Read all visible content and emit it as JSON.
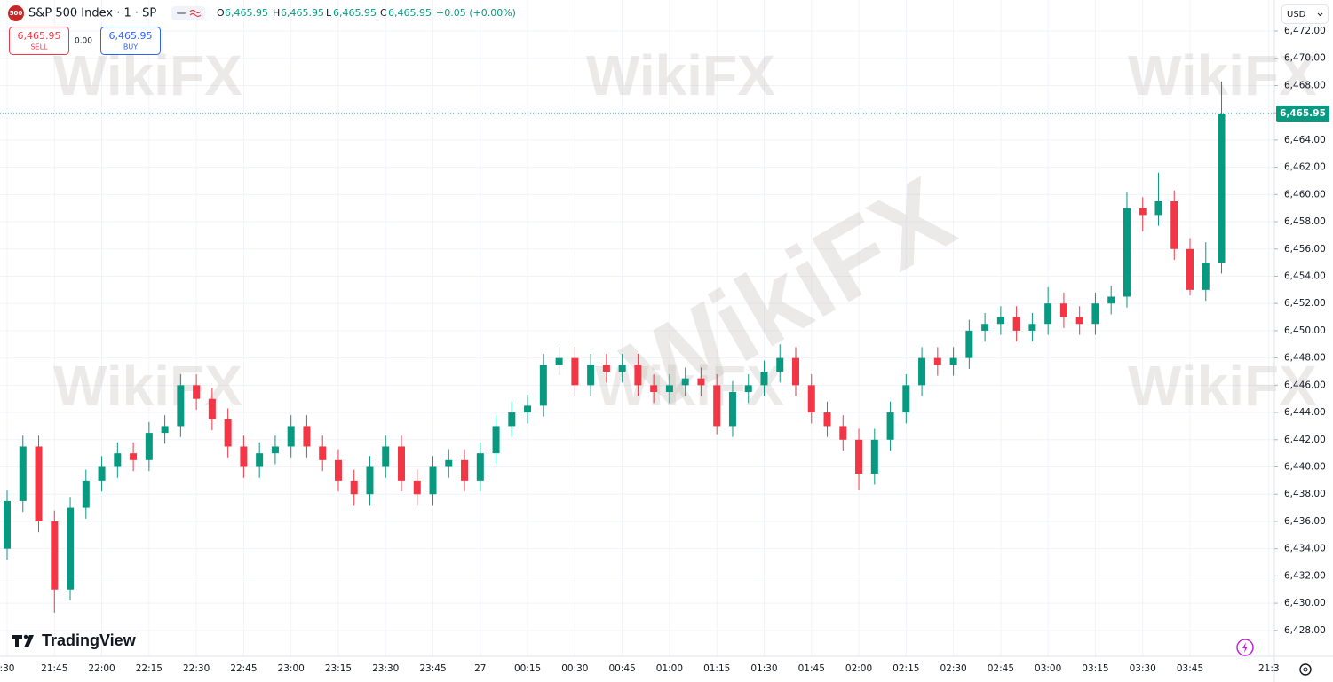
{
  "chart_data": {
    "type": "candlestick",
    "title": "S&P 500 Index · 1 · SP",
    "symbol_badge": "500",
    "header": {
      "open_label": "O",
      "open": "6,465.95",
      "high_label": "H",
      "high": "6,465.95",
      "low_label": "L",
      "low": "6,465.95",
      "close_label": "C",
      "close": "6,465.95",
      "change": "+0.05 (+0.00%)"
    },
    "sell": {
      "price": "6,465.95",
      "label": "SELL"
    },
    "spread": "0.00",
    "buy": {
      "price": "6,465.95",
      "label": "BUY"
    },
    "currency": "USD",
    "brand": "TradingView",
    "watermark": "WikiFX",
    "up_color": "#089981",
    "down_color": "#f23645",
    "grid": true,
    "last_price": {
      "value": 6465.95,
      "label": "6,465.95"
    },
    "categories": [
      ":30",
      null,
      null,
      "21:45",
      null,
      null,
      "22:00",
      null,
      null,
      "22:15",
      null,
      null,
      "22:30",
      null,
      null,
      "22:45",
      null,
      null,
      "23:00",
      null,
      null,
      "23:15",
      null,
      null,
      "23:30",
      null,
      null,
      "23:45",
      null,
      null,
      "27",
      null,
      null,
      "00:15",
      null,
      null,
      "00:30",
      null,
      null,
      "00:45",
      null,
      null,
      "01:00",
      null,
      null,
      "01:15",
      null,
      null,
      "01:30",
      null,
      null,
      "01:45",
      null,
      null,
      "02:00",
      null,
      null,
      "02:15",
      null,
      null,
      "02:30",
      null,
      null,
      "02:45",
      null,
      null,
      "03:00",
      null,
      null,
      "03:15",
      null,
      null,
      "03:30",
      null,
      null,
      "03:45",
      null,
      null,
      null,
      null,
      "21:3"
    ],
    "open": [
      6434,
      6437.5,
      6441.5,
      6436,
      6431,
      6437,
      6439,
      6440,
      6441,
      6440.5,
      6442.5,
      6443,
      6446,
      6445,
      6443.5,
      6441.5,
      6440,
      6441,
      6441.5,
      6443,
      6441.5,
      6440.5,
      6439,
      6438,
      6440,
      6441.5,
      6439,
      6438,
      6440,
      6440.5,
      6439,
      6441,
      6443,
      6444,
      6444.5,
      6447.5,
      6448,
      6446,
      6447.5,
      6447,
      6447.5,
      6446,
      6445.5,
      6446,
      6446.5,
      6446,
      6443,
      6445.5,
      6446,
      6447,
      6448,
      6446,
      6444,
      6443,
      6442,
      6439.5,
      6442,
      6444,
      6446,
      6448,
      6447.5,
      6448,
      6450,
      6450.5,
      6451,
      6450,
      6450.5,
      6452,
      6451,
      6450.5,
      6452,
      6452.5,
      6459,
      6458.5,
      6459.5,
      6456,
      6453,
      6455,
      null,
      null,
      null
    ],
    "high": [
      6438.3,
      6442.3,
      6442.3,
      6436.8,
      6437.8,
      6439.8,
      6440.8,
      6441.8,
      6441.8,
      6443.3,
      6443.8,
      6446.8,
      6446.8,
      6445.8,
      6444.3,
      6442.3,
      6441.8,
      6442.3,
      6443.8,
      6443.8,
      6442.3,
      6441.3,
      6439.8,
      6440.8,
      6442.3,
      6442.3,
      6439.8,
      6440.8,
      6441.3,
      6441.3,
      6441.8,
      6443.8,
      6444.8,
      6445.3,
      6448.3,
      6448.8,
      6448.8,
      6448.3,
      6448.3,
      6448.3,
      6448.3,
      6446.8,
      6446.8,
      6447.3,
      6447.3,
      6446.8,
      6446.3,
      6446.8,
      6447.8,
      6449,
      6448.8,
      6446.8,
      6444.8,
      6443.8,
      6442.8,
      6442.8,
      6444.8,
      6446.8,
      6448.8,
      6448.8,
      6448.8,
      6450.8,
      6451.3,
      6451.8,
      6451.8,
      6451.3,
      6453.2,
      6452.8,
      6451.8,
      6452.8,
      6453.3,
      6460.2,
      6459.8,
      6461.6,
      6460.3,
      6456.8,
      6456.5,
      6468.3,
      null,
      null,
      null
    ],
    "low": [
      6433.2,
      6436.7,
      6435.2,
      6429.3,
      6430.2,
      6436.2,
      6438.2,
      6439.2,
      6439.7,
      6439.7,
      6441.7,
      6442.2,
      6444.2,
      6442.7,
      6440.7,
      6439.2,
      6439.2,
      6440.2,
      6440.7,
      6440.7,
      6439.7,
      6438.2,
      6437.2,
      6437.2,
      6439.2,
      6438.2,
      6437.2,
      6437.2,
      6439.2,
      6438.2,
      6438.2,
      6440.2,
      6442.2,
      6443.2,
      6443.7,
      6446.7,
      6445.2,
      6445.2,
      6446.2,
      6446.2,
      6445.2,
      6444.7,
      6444.7,
      6445.2,
      6445.2,
      6442.4,
      6442.2,
      6444.7,
      6445.2,
      6446.2,
      6445.2,
      6443.2,
      6442.2,
      6441.2,
      6438.3,
      6438.7,
      6441.2,
      6443.2,
      6445.2,
      6446.7,
      6446.7,
      6447.2,
      6449.2,
      6449.7,
      6449.2,
      6449.2,
      6449.7,
      6450.2,
      6449.7,
      6449.7,
      6451.2,
      6451.7,
      6457.3,
      6457.7,
      6455.2,
      6452.6,
      6452.2,
      6454.2,
      null,
      null,
      null
    ],
    "close": [
      6437.5,
      6441.5,
      6436,
      6431,
      6437,
      6439,
      6440,
      6441,
      6440.5,
      6442.5,
      6443,
      6446,
      6445,
      6443.5,
      6441.5,
      6440,
      6441,
      6441.5,
      6443,
      6441.5,
      6440.5,
      6439,
      6438,
      6440,
      6441.5,
      6439,
      6438,
      6440,
      6440.5,
      6439,
      6441,
      6443,
      6444,
      6444.5,
      6447.5,
      6448,
      6446,
      6447.5,
      6447,
      6447.5,
      6446,
      6445.5,
      6446,
      6446.5,
      6446,
      6443,
      6445.5,
      6446,
      6447,
      6448,
      6446,
      6444,
      6443,
      6442,
      6439.5,
      6442,
      6444,
      6446,
      6448,
      6447.5,
      6448,
      6450,
      6450.5,
      6451,
      6450,
      6450.5,
      6452,
      6451,
      6450.5,
      6452,
      6452.5,
      6459,
      6458.5,
      6459.5,
      6456,
      6453,
      6455,
      6465.95,
      null,
      null,
      null
    ],
    "ylim": [
      6426.1,
      6474.28
    ],
    "yticks": [
      {
        "value": 6428,
        "label": "6,428.00"
      },
      {
        "value": 6430,
        "label": "6,430.00"
      },
      {
        "value": 6432,
        "label": "6,432.00"
      },
      {
        "value": 6434,
        "label": "6,434.00"
      },
      {
        "value": 6436,
        "label": "6,436.00"
      },
      {
        "value": 6438,
        "label": "6,438.00"
      },
      {
        "value": 6440,
        "label": "6,440.00"
      },
      {
        "value": 6442,
        "label": "6,442.00"
      },
      {
        "value": 6444,
        "label": "6,444.00"
      },
      {
        "value": 6446,
        "label": "6,446.00"
      },
      {
        "value": 6448,
        "label": "6,448.00"
      },
      {
        "value": 6450,
        "label": "6,450.00"
      },
      {
        "value": 6452,
        "label": "6,452.00"
      },
      {
        "value": 6454,
        "label": "6,454.00"
      },
      {
        "value": 6456,
        "label": "6,456.00"
      },
      {
        "value": 6458,
        "label": "6,458.00"
      },
      {
        "value": 6460,
        "label": "6,460.00"
      },
      {
        "value": 6462,
        "label": "6,462.00"
      },
      {
        "value": 6464,
        "label": "6,464.00"
      },
      {
        "value": 6466,
        "label": "6,466.00"
      },
      {
        "value": 6468,
        "label": "6,468.00"
      },
      {
        "value": 6470,
        "label": "6,470.00"
      },
      {
        "value": 6472,
        "label": "6,472.00"
      }
    ]
  }
}
